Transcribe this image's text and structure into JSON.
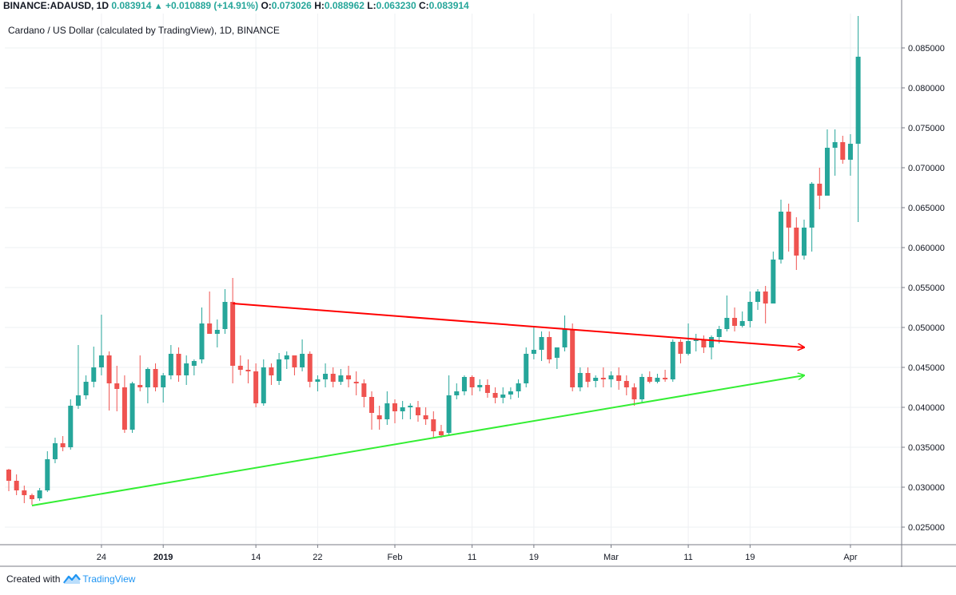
{
  "header": {
    "symbol": "BINANCE:ADAUSD, 1D",
    "last": "0.083914",
    "change": "+0.010889 (+14.91%)",
    "o_label": "O:",
    "o": "0.073026",
    "h_label": "H:",
    "h": "0.088962",
    "l_label": "L:",
    "l": "0.063230",
    "c_label": "C:",
    "c": "0.083914"
  },
  "footer": {
    "created_with": "Created with",
    "brand": "TradingView"
  },
  "colors": {
    "up": "#26a69a",
    "down": "#ef5350",
    "resistance": "#ff0000",
    "support": "#33ee33",
    "grid": "#eef0f3"
  },
  "chart_data": {
    "type": "candlestick",
    "title": "Cardano / US Dollar (calculated by TradingView), 1D, BINANCE",
    "ylim": [
      0.0228,
      0.0893
    ],
    "y_ticks": [
      "0.085000",
      "0.080000",
      "0.075000",
      "0.070000",
      "0.065000",
      "0.060000",
      "0.055000",
      "0.050000",
      "0.045000",
      "0.040000",
      "0.035000",
      "0.030000",
      "0.025000"
    ],
    "x_ticks": [
      {
        "label": "24",
        "day": 12
      },
      {
        "label": "2019",
        "day": 20
      },
      {
        "label": "14",
        "day": 32
      },
      {
        "label": "22",
        "day": 40
      },
      {
        "label": "Feb",
        "day": 50
      },
      {
        "label": "11",
        "day": 60
      },
      {
        "label": "19",
        "day": 68
      },
      {
        "label": "Mar",
        "day": 78
      },
      {
        "label": "11",
        "day": 88
      },
      {
        "label": "19",
        "day": 96
      },
      {
        "label": "Apr",
        "day": 109
      }
    ],
    "candles": [
      [
        0.0322,
        0.0323,
        0.0295,
        0.0308
      ],
      [
        0.0308,
        0.0316,
        0.029,
        0.0296
      ],
      [
        0.0296,
        0.0302,
        0.028,
        0.029
      ],
      [
        0.029,
        0.0292,
        0.0278,
        0.0285
      ],
      [
        0.0286,
        0.0299,
        0.0283,
        0.0296
      ],
      [
        0.0296,
        0.0345,
        0.0294,
        0.0335
      ],
      [
        0.0335,
        0.0362,
        0.033,
        0.0355
      ],
      [
        0.0355,
        0.0364,
        0.0345,
        0.035
      ],
      [
        0.035,
        0.041,
        0.0347,
        0.0402
      ],
      [
        0.0402,
        0.0478,
        0.0398,
        0.0415
      ],
      [
        0.0415,
        0.044,
        0.041,
        0.0432
      ],
      [
        0.0432,
        0.0476,
        0.0425,
        0.045
      ],
      [
        0.045,
        0.0516,
        0.044,
        0.0465
      ],
      [
        0.0465,
        0.047,
        0.0396,
        0.043
      ],
      [
        0.043,
        0.0452,
        0.0395,
        0.0423
      ],
      [
        0.0425,
        0.044,
        0.0368,
        0.0372
      ],
      [
        0.0372,
        0.0432,
        0.0368,
        0.043
      ],
      [
        0.0428,
        0.0465,
        0.042,
        0.0425
      ],
      [
        0.0425,
        0.045,
        0.0405,
        0.0448
      ],
      [
        0.0448,
        0.0455,
        0.042,
        0.0425
      ],
      [
        0.0425,
        0.0443,
        0.0406,
        0.044
      ],
      [
        0.044,
        0.0478,
        0.0435,
        0.0467
      ],
      [
        0.0467,
        0.0475,
        0.0432,
        0.044
      ],
      [
        0.044,
        0.0465,
        0.0428,
        0.0455
      ],
      [
        0.0452,
        0.046,
        0.044,
        0.0458
      ],
      [
        0.046,
        0.0525,
        0.0455,
        0.0505
      ],
      [
        0.0505,
        0.0545,
        0.0495,
        0.0492
      ],
      [
        0.0492,
        0.051,
        0.0475,
        0.0497
      ],
      [
        0.0498,
        0.0548,
        0.0492,
        0.0532
      ],
      [
        0.0532,
        0.0562,
        0.043,
        0.0452
      ],
      [
        0.0452,
        0.0465,
        0.044,
        0.0447
      ],
      [
        0.0447,
        0.046,
        0.043,
        0.0445
      ],
      [
        0.0445,
        0.0455,
        0.04,
        0.0405
      ],
      [
        0.0405,
        0.046,
        0.0402,
        0.045
      ],
      [
        0.045,
        0.0455,
        0.0428,
        0.044
      ],
      [
        0.0433,
        0.0468,
        0.0428,
        0.046
      ],
      [
        0.046,
        0.047,
        0.0448,
        0.0465
      ],
      [
        0.0465,
        0.0465,
        0.044,
        0.045
      ],
      [
        0.045,
        0.0485,
        0.0445,
        0.0467
      ],
      [
        0.0467,
        0.047,
        0.0425,
        0.0432
      ],
      [
        0.0432,
        0.044,
        0.042,
        0.0435
      ],
      [
        0.0435,
        0.0455,
        0.0425,
        0.0442
      ],
      [
        0.0442,
        0.045,
        0.0425,
        0.0432
      ],
      [
        0.0432,
        0.0448,
        0.0428,
        0.044
      ],
      [
        0.044,
        0.0452,
        0.0425,
        0.0435
      ],
      [
        0.0432,
        0.0445,
        0.0415,
        0.043
      ],
      [
        0.043,
        0.0435,
        0.04,
        0.0413
      ],
      [
        0.0413,
        0.042,
        0.0372,
        0.0393
      ],
      [
        0.039,
        0.0402,
        0.0372,
        0.0385
      ],
      [
        0.0385,
        0.042,
        0.0378,
        0.0405
      ],
      [
        0.0405,
        0.041,
        0.038,
        0.0395
      ],
      [
        0.0395,
        0.0408,
        0.0385,
        0.04
      ],
      [
        0.04,
        0.0405,
        0.0385,
        0.0402
      ],
      [
        0.04,
        0.0408,
        0.0382,
        0.039
      ],
      [
        0.039,
        0.04,
        0.0378,
        0.0385
      ],
      [
        0.0385,
        0.0395,
        0.0362,
        0.037
      ],
      [
        0.037,
        0.0378,
        0.0362,
        0.0365
      ],
      [
        0.0368,
        0.044,
        0.0365,
        0.0415
      ],
      [
        0.0415,
        0.043,
        0.041,
        0.042
      ],
      [
        0.042,
        0.044,
        0.0415,
        0.0438
      ],
      [
        0.0438,
        0.044,
        0.0415,
        0.0425
      ],
      [
        0.0425,
        0.0435,
        0.042,
        0.0428
      ],
      [
        0.0428,
        0.0435,
        0.0412,
        0.0418
      ],
      [
        0.0418,
        0.0425,
        0.0405,
        0.0412
      ],
      [
        0.0412,
        0.0425,
        0.0405,
        0.0416
      ],
      [
        0.0416,
        0.0425,
        0.041,
        0.042
      ],
      [
        0.042,
        0.0435,
        0.0412,
        0.043
      ],
      [
        0.043,
        0.0475,
        0.0425,
        0.0467
      ],
      [
        0.0467,
        0.05,
        0.046,
        0.0472
      ],
      [
        0.0472,
        0.0495,
        0.0458,
        0.0488
      ],
      [
        0.0488,
        0.0495,
        0.0455,
        0.046
      ],
      [
        0.0462,
        0.0475,
        0.0448,
        0.0475
      ],
      [
        0.0475,
        0.0515,
        0.047,
        0.0498
      ],
      [
        0.0498,
        0.0505,
        0.042,
        0.0425
      ],
      [
        0.0425,
        0.045,
        0.042,
        0.0443
      ],
      [
        0.0443,
        0.045,
        0.0425,
        0.0432
      ],
      [
        0.0433,
        0.044,
        0.0425,
        0.0437
      ],
      [
        0.0437,
        0.045,
        0.0425,
        0.0435
      ],
      [
        0.0435,
        0.0445,
        0.0425,
        0.044
      ],
      [
        0.044,
        0.045,
        0.0422,
        0.0433
      ],
      [
        0.0433,
        0.044,
        0.0415,
        0.0425
      ],
      [
        0.0425,
        0.043,
        0.0402,
        0.041
      ],
      [
        0.041,
        0.0442,
        0.0405,
        0.0438
      ],
      [
        0.0438,
        0.0445,
        0.043,
        0.0432
      ],
      [
        0.0432,
        0.0442,
        0.043,
        0.0437
      ],
      [
        0.0437,
        0.0447,
        0.0432,
        0.0435
      ],
      [
        0.0435,
        0.0485,
        0.0432,
        0.0482
      ],
      [
        0.0482,
        0.0485,
        0.0455,
        0.0467
      ],
      [
        0.0467,
        0.0505,
        0.0465,
        0.0483
      ],
      [
        0.0483,
        0.0492,
        0.047,
        0.0485
      ],
      [
        0.0485,
        0.049,
        0.0468,
        0.0475
      ],
      [
        0.0475,
        0.049,
        0.046,
        0.0488
      ],
      [
        0.0488,
        0.0502,
        0.048,
        0.0498
      ],
      [
        0.0498,
        0.054,
        0.0495,
        0.0512
      ],
      [
        0.0512,
        0.0525,
        0.0495,
        0.0502
      ],
      [
        0.0502,
        0.052,
        0.05,
        0.0508
      ],
      [
        0.0508,
        0.0545,
        0.05,
        0.0532
      ],
      [
        0.0532,
        0.0548,
        0.0522,
        0.0545
      ],
      [
        0.0545,
        0.0552,
        0.0505,
        0.053
      ],
      [
        0.053,
        0.0595,
        0.053,
        0.0585
      ],
      [
        0.0585,
        0.066,
        0.058,
        0.0645
      ],
      [
        0.0645,
        0.0655,
        0.0595,
        0.0625
      ],
      [
        0.0625,
        0.0638,
        0.0572,
        0.059
      ],
      [
        0.059,
        0.0635,
        0.0585,
        0.0625
      ],
      [
        0.0625,
        0.0682,
        0.0595,
        0.068
      ],
      [
        0.068,
        0.07,
        0.0648,
        0.0665
      ],
      [
        0.0665,
        0.0748,
        0.0665,
        0.0725
      ],
      [
        0.0725,
        0.0748,
        0.069,
        0.0732
      ],
      [
        0.0732,
        0.074,
        0.0705,
        0.071
      ],
      [
        0.071,
        0.0742,
        0.069,
        0.073
      ],
      [
        0.073,
        0.089,
        0.0632,
        0.0839
      ]
    ],
    "trendlines": [
      {
        "name": "resistance",
        "from": {
          "day": 29,
          "y": 0.053
        },
        "to": {
          "day": 103,
          "y": 0.0475
        },
        "arrow": true
      },
      {
        "name": "support",
        "from": {
          "day": 3,
          "y": 0.0277
        },
        "to": {
          "day": 103,
          "y": 0.044
        },
        "arrow": true
      }
    ],
    "grid": true
  }
}
